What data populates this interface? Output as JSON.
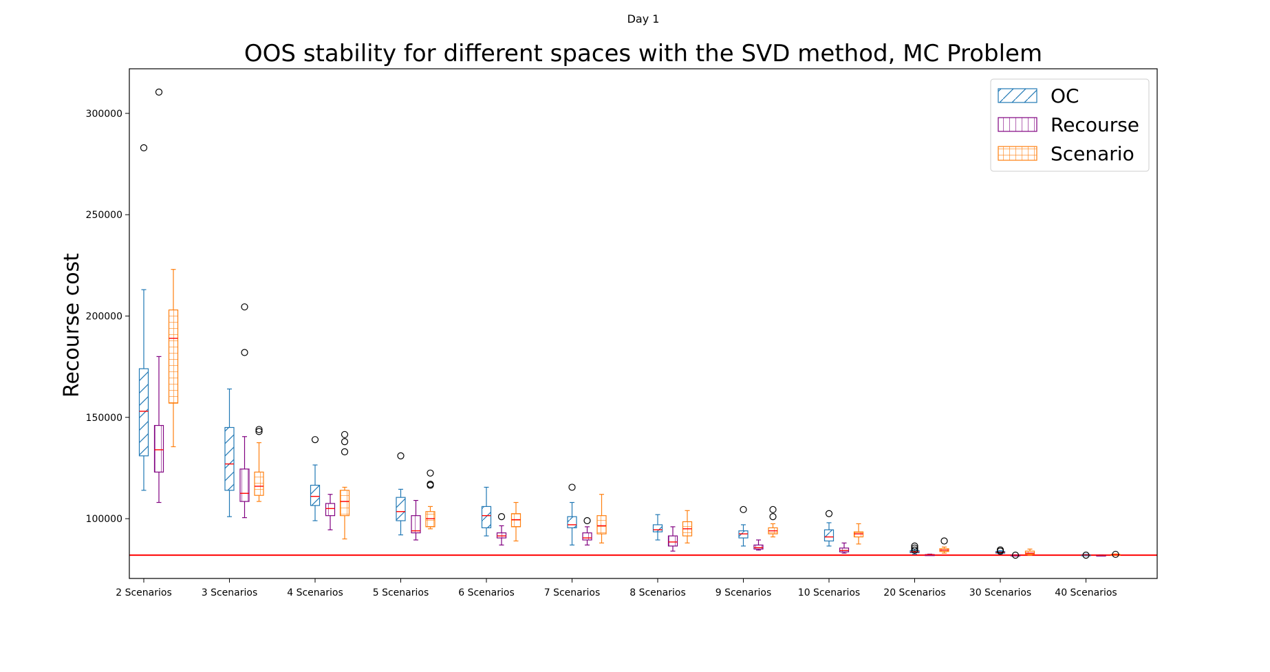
{
  "suptitle": "Day 1",
  "chart_data": {
    "type": "box",
    "title": "OOS stability for different spaces with the SVD method, MC Problem",
    "xlabel": "",
    "ylabel": "Recourse cost",
    "ylim": [
      70500,
      322000
    ],
    "yticks": [
      100000,
      150000,
      200000,
      250000,
      300000
    ],
    "ytick_labels": [
      "100000",
      "150000",
      "200000",
      "250000",
      "300000"
    ],
    "reference_line": {
      "y": 82000,
      "color": "#ff0000"
    },
    "legend_position": "top-right",
    "categories": [
      "2 Scenarios",
      "3 Scenarios",
      "4 Scenarios",
      "5 Scenarios",
      "6 Scenarios",
      "7 Scenarios",
      "8 Scenarios",
      "9 Scenarios",
      "10 Scenarios",
      "20 Scenarios",
      "30 Scenarios",
      "40 Scenarios"
    ],
    "median_color": "#ff0000",
    "series": [
      {
        "name": "OC",
        "color": "#1f77b4",
        "hatch": "diagonal",
        "boxes": [
          {
            "whislo": 114000,
            "q1": 131000,
            "med": 153000,
            "q3": 174000,
            "whishi": 213000,
            "fliers": [
              283000
            ]
          },
          {
            "whislo": 101000,
            "q1": 114000,
            "med": 127000,
            "q3": 145000,
            "whishi": 164000,
            "fliers": []
          },
          {
            "whislo": 99000,
            "q1": 106500,
            "med": 111000,
            "q3": 116500,
            "whishi": 126500,
            "fliers": [
              139000
            ]
          },
          {
            "whislo": 92000,
            "q1": 99000,
            "med": 103500,
            "q3": 110500,
            "whishi": 114500,
            "fliers": [
              131000
            ]
          },
          {
            "whislo": 91500,
            "q1": 95500,
            "med": 101500,
            "q3": 106000,
            "whishi": 115500,
            "fliers": []
          },
          {
            "whislo": 87000,
            "q1": 95500,
            "med": 97000,
            "q3": 101000,
            "whishi": 108000,
            "fliers": [
              115500
            ]
          },
          {
            "whislo": 89500,
            "q1": 93500,
            "med": 94500,
            "q3": 97000,
            "whishi": 102000,
            "fliers": []
          },
          {
            "whislo": 86500,
            "q1": 90500,
            "med": 92500,
            "q3": 94000,
            "whishi": 97000,
            "fliers": [
              104500
            ]
          },
          {
            "whislo": 86500,
            "q1": 89000,
            "med": 91000,
            "q3": 94500,
            "whishi": 98000,
            "fliers": [
              102500
            ]
          },
          {
            "whislo": 82500,
            "q1": 83200,
            "med": 83600,
            "q3": 84200,
            "whishi": 85000,
            "fliers": [
              84500,
              85500,
              86500
            ]
          },
          {
            "whislo": 82500,
            "q1": 83000,
            "med": 83400,
            "q3": 83800,
            "whishi": 84200,
            "fliers": [
              84000,
              84600
            ]
          },
          {
            "whislo": 81800,
            "q1": 82000,
            "med": 82100,
            "q3": 82200,
            "whishi": 82400,
            "fliers": [
              82000
            ]
          }
        ]
      },
      {
        "name": "Recourse",
        "color": "#800080",
        "hatch": "vertical",
        "boxes": [
          {
            "whislo": 108000,
            "q1": 123000,
            "med": 134000,
            "q3": 146000,
            "whishi": 180000,
            "fliers": [
              310500
            ]
          },
          {
            "whislo": 100500,
            "q1": 108500,
            "med": 112500,
            "q3": 124500,
            "whishi": 140500,
            "fliers": [
              182000,
              204500
            ]
          },
          {
            "whislo": 94500,
            "q1": 101500,
            "med": 105000,
            "q3": 107500,
            "whishi": 112000,
            "fliers": []
          },
          {
            "whislo": 89500,
            "q1": 93000,
            "med": 94000,
            "q3": 101500,
            "whishi": 109000,
            "fliers": []
          },
          {
            "whislo": 87000,
            "q1": 90500,
            "med": 91500,
            "q3": 93000,
            "whishi": 96500,
            "fliers": [
              101000
            ]
          },
          {
            "whislo": 87000,
            "q1": 89500,
            "med": 90500,
            "q3": 93000,
            "whishi": 96000,
            "fliers": [
              99000
            ]
          },
          {
            "whislo": 84000,
            "q1": 86500,
            "med": 88500,
            "q3": 91500,
            "whishi": 96000,
            "fliers": []
          },
          {
            "whislo": 84500,
            "q1": 85000,
            "med": 85700,
            "q3": 87000,
            "whishi": 89500,
            "fliers": []
          },
          {
            "whislo": 83000,
            "q1": 83600,
            "med": 84300,
            "q3": 85500,
            "whishi": 88000,
            "fliers": []
          },
          {
            "whislo": 82000,
            "q1": 82100,
            "med": 82200,
            "q3": 82300,
            "whishi": 82500,
            "fliers": []
          },
          {
            "whislo": 81800,
            "q1": 81900,
            "med": 82000,
            "q3": 82100,
            "whishi": 82200,
            "fliers": [
              82000
            ]
          },
          {
            "whislo": 81900,
            "q1": 81950,
            "med": 82000,
            "q3": 82050,
            "whishi": 82100,
            "fliers": []
          }
        ]
      },
      {
        "name": "Scenario",
        "color": "#ff7f0e",
        "hatch": "grid",
        "boxes": [
          {
            "whislo": 135500,
            "q1": 157000,
            "med": 189000,
            "q3": 203000,
            "whishi": 223000,
            "fliers": []
          },
          {
            "whislo": 108500,
            "q1": 111500,
            "med": 116000,
            "q3": 123000,
            "whishi": 137500,
            "fliers": [
              143000,
              144000
            ]
          },
          {
            "whislo": 90000,
            "q1": 101500,
            "med": 108500,
            "q3": 114000,
            "whishi": 115500,
            "fliers": [
              133000,
              138000,
              141500
            ]
          },
          {
            "whislo": 95000,
            "q1": 96000,
            "med": 100000,
            "q3": 103500,
            "whishi": 106000,
            "fliers": [
              116500,
              117000,
              122500
            ]
          },
          {
            "whislo": 89000,
            "q1": 96000,
            "med": 99500,
            "q3": 102500,
            "whishi": 108000,
            "fliers": []
          },
          {
            "whislo": 88000,
            "q1": 92500,
            "med": 96500,
            "q3": 101500,
            "whishi": 112000,
            "fliers": []
          },
          {
            "whislo": 88000,
            "q1": 91500,
            "med": 95000,
            "q3": 98500,
            "whishi": 104000,
            "fliers": []
          },
          {
            "whislo": 91000,
            "q1": 92500,
            "med": 94000,
            "q3": 95500,
            "whishi": 97500,
            "fliers": [
              101000,
              104500
            ]
          },
          {
            "whislo": 87500,
            "q1": 91000,
            "med": 92500,
            "q3": 93500,
            "whishi": 97500,
            "fliers": []
          },
          {
            "whislo": 83000,
            "q1": 83800,
            "med": 84500,
            "q3": 85200,
            "whishi": 86000,
            "fliers": [
              89000
            ]
          },
          {
            "whislo": 82000,
            "q1": 82500,
            "med": 83000,
            "q3": 84000,
            "whishi": 85000,
            "fliers": []
          },
          {
            "whislo": 82000,
            "q1": 82100,
            "med": 82200,
            "q3": 82400,
            "whishi": 82600,
            "fliers": [
              82400
            ]
          }
        ]
      }
    ]
  }
}
